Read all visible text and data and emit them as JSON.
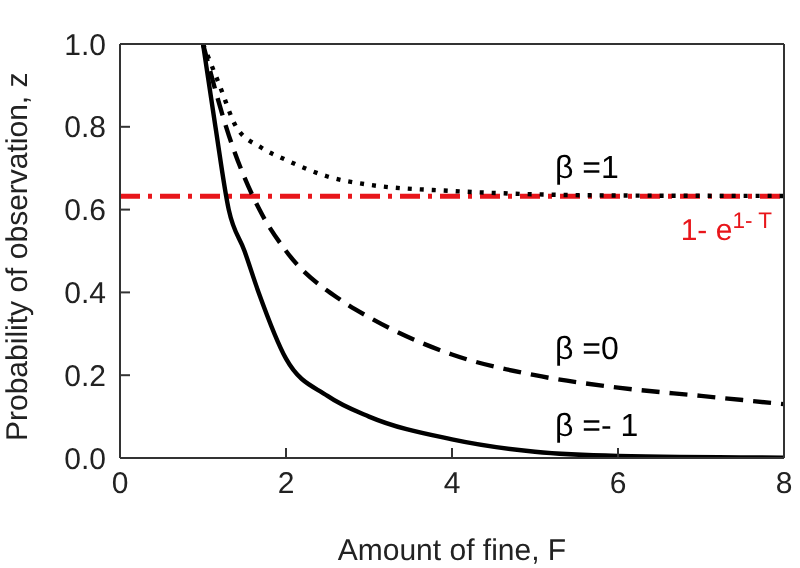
{
  "chart_data": {
    "type": "line",
    "xlabel": "Amount of fine, F",
    "ylabel": "Probability of observation, z",
    "xlim": [
      0,
      8
    ],
    "xticks": [
      0,
      2,
      4,
      6,
      8
    ],
    "ylim": [
      0,
      1
    ],
    "yticks": [
      {
        "value": 0,
        "label": "0.0"
      },
      {
        "value": 0.2,
        "label": "0.2"
      },
      {
        "value": 0.4,
        "label": "0.4"
      },
      {
        "value": 0.6,
        "label": "0.6"
      },
      {
        "value": 0.8,
        "label": "0.8"
      },
      {
        "value": 1,
        "label": "1.0"
      }
    ],
    "grid": false,
    "legend": false,
    "marker": "none",
    "series": [
      {
        "name": "β =1",
        "color": "#000000",
        "line_style": "dotted",
        "x": [
          1,
          1.2,
          1.4,
          1.7,
          2,
          2.5,
          3,
          4,
          5,
          6,
          8
        ],
        "values": [
          1,
          0.9,
          0.8,
          0.75,
          0.72,
          0.68,
          0.66,
          0.645,
          0.637,
          0.634,
          0.633
        ]
      },
      {
        "name": "β =0",
        "color": "#000000",
        "line_style": "dashed",
        "x": [
          1,
          1.31,
          1.68,
          2,
          2.67,
          3,
          4,
          5,
          6,
          7,
          8
        ],
        "values": [
          1,
          0.78,
          0.6,
          0.5,
          0.38,
          0.34,
          0.25,
          0.2,
          0.17,
          0.15,
          0.13
        ]
      },
      {
        "name": "β =- 1",
        "color": "#000000",
        "line_style": "solid",
        "x": [
          1,
          1.15,
          1.31,
          1.5,
          1.67,
          2,
          2.5,
          3,
          4,
          5,
          6,
          8
        ],
        "values": [
          1,
          0.8,
          0.6,
          0.5,
          0.4,
          0.24,
          0.15,
          0.1,
          0.045,
          0.015,
          0.005,
          0.001
        ]
      }
    ],
    "ref_lines": [
      {
        "axis": "y",
        "value": 0.632,
        "label": "1- e$^{1- T}$",
        "color": "#e8161b",
        "line_style": "dashdot"
      }
    ]
  }
}
